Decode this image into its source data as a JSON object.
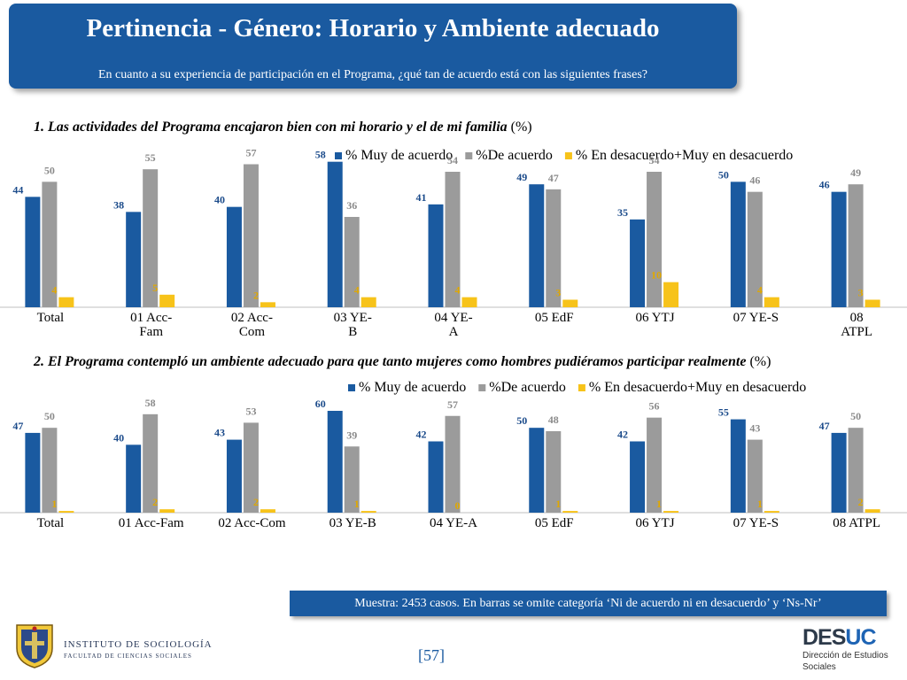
{
  "header": {
    "title": "Pertinencia - Género: Horario y Ambiente adecuado",
    "subtitle": "En cuanto a su experiencia de participación en el Programa, ¿qué tan de acuerdo está con las siguientes frases?"
  },
  "colors": {
    "series1": "#1a5aa0",
    "series2": "#9b9b9b",
    "series3": "#f7c31a",
    "header_bg": "#1a5aa0"
  },
  "chart_data": [
    {
      "type": "bar",
      "title": "1. Las actividades del Programa encajaron bien con mi horario y el de mi familia",
      "title_suffix": "(%)",
      "categories": [
        "Total",
        "01 Acc-\nFam",
        "02 Acc-\nCom",
        "03 YE-\nB",
        "04 YE-\nA",
        "05 EdF",
        "06 YTJ",
        "07 YE-S",
        "08\nATPL"
      ],
      "series": [
        {
          "name": "% Muy de acuerdo",
          "values": [
            44,
            38,
            40,
            58,
            41,
            49,
            35,
            50,
            46
          ]
        },
        {
          "name": "%De acuerdo",
          "values": [
            50,
            55,
            57,
            36,
            54,
            47,
            54,
            46,
            49
          ]
        },
        {
          "name": "% En desacuerdo+Muy en desacuerdo",
          "values": [
            4,
            5,
            2,
            4,
            4,
            3,
            10,
            4,
            3
          ]
        }
      ],
      "ylim": [
        0,
        60
      ],
      "legend": "top-right",
      "grid": false
    },
    {
      "type": "bar",
      "title": "2. El Programa contempló un ambiente adecuado para que tanto mujeres como hombres pudiéramos participar realmente",
      "title_suffix": "(%)",
      "categories": [
        "Total",
        "01 Acc-Fam",
        "02 Acc-Com",
        "03 YE-B",
        "04 YE-A",
        "05 EdF",
        "06 YTJ",
        "07 YE-S",
        "08 ATPL"
      ],
      "series": [
        {
          "name": "% Muy de acuerdo",
          "values": [
            47,
            40,
            43,
            60,
            42,
            50,
            42,
            55,
            47
          ]
        },
        {
          "name": "%De acuerdo",
          "values": [
            50,
            58,
            53,
            39,
            57,
            48,
            56,
            43,
            50
          ]
        },
        {
          "name": "% En desacuerdo+Muy en desacuerdo",
          "values": [
            1,
            2,
            2,
            1,
            0,
            1,
            1,
            1,
            2
          ]
        }
      ],
      "ylim": [
        0,
        60
      ],
      "legend": "top-right",
      "grid": false
    }
  ],
  "footnote": "Muestra: 2453 casos. En barras se omite categoría ‘Ni de acuerdo ni en desacuerdo’ y ‘Ns-Nr’",
  "logo_left": {
    "line1": "INSTITUTO DE SOCIOLOGÍA",
    "line2": "FACULTAD DE CIENCIAS SOCIALES"
  },
  "page_number": "[57]",
  "logo_right": {
    "brand_a": "DES",
    "brand_b": "UC",
    "line1": "Dirección de Estudios",
    "line2": "Sociales"
  }
}
